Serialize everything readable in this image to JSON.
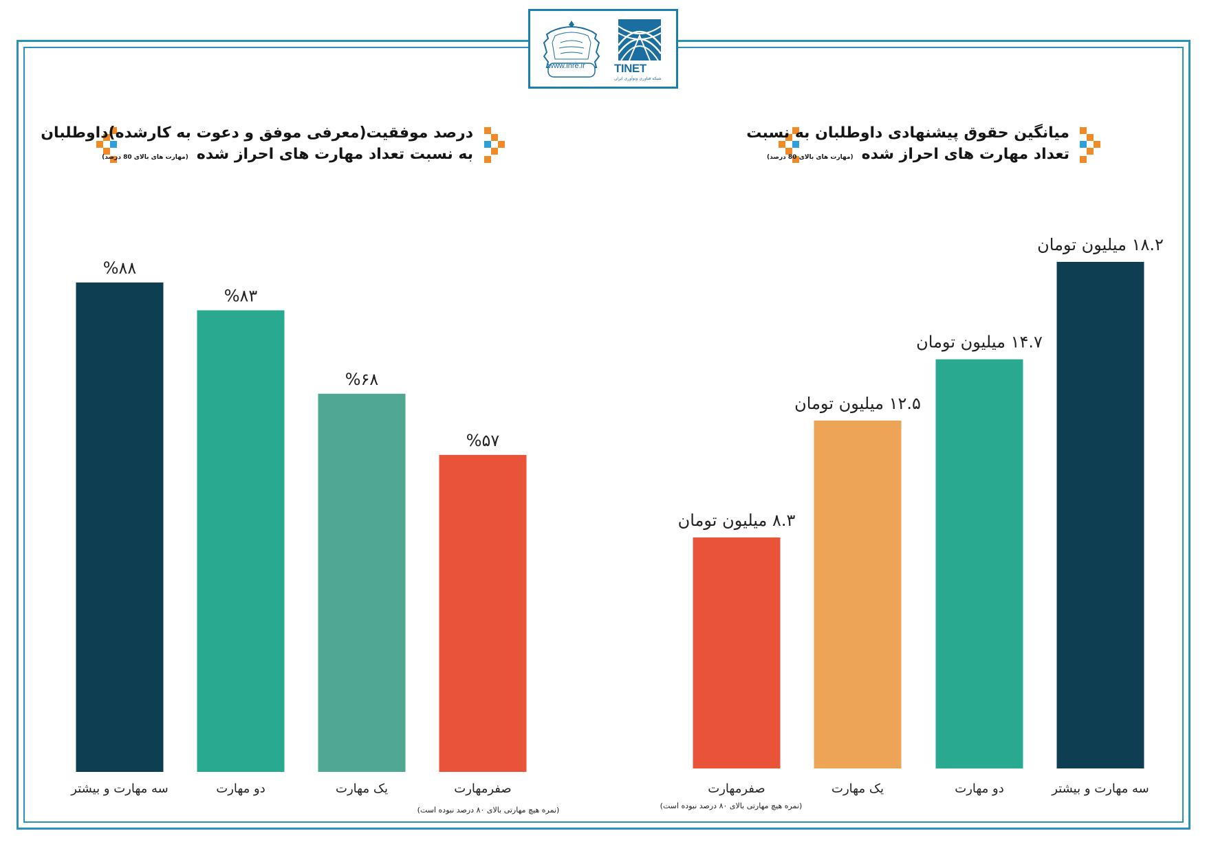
{
  "header": {
    "inre_url": "www.inre.ir",
    "tinet_name": "TINET",
    "tinet_subtitle": "شبکه فناوری ونوآوری ایران"
  },
  "colors": {
    "frame": "#2a92b8",
    "dark_teal": "#0e3e51",
    "teal": "#2aa991",
    "muted_teal": "#50a792",
    "orange_red": "#e8533a",
    "light_orange": "#eea457",
    "deco_orange": "#ef8a27",
    "deco_blue": "#2a9fd8"
  },
  "left_chart": {
    "title_line1": "درصد موفقیت(معرفی موفق و دعوت به کارشده)داوطلبان",
    "title_line2": "به نسبت تعداد مهارت های احراز شده",
    "title_note": "(مهارت های بالای 80 درصد)"
  },
  "right_chart": {
    "title_line1": "میانگین حقوق پیشنهادی داوطلبان به نسبت",
    "title_line2": "تعداد مهارت های احراز شده",
    "title_note": "(مهارت های بالای 80 درصد)"
  },
  "chart_data": [
    {
      "type": "bar",
      "title": "درصد موفقیت(معرفی موفق و دعوت به کارشده)داوطلبان به نسبت تعداد مهارت های احراز شده",
      "categories": [
        "سه مهارت و بیشتر",
        "دو مهارت",
        "یک مهارت",
        "صفرمهارت"
      ],
      "values": [
        88,
        83,
        68,
        57
      ],
      "value_labels": [
        "%۸۸",
        "%۸۳",
        "%۶۸",
        "%۵۷"
      ],
      "category_notes": [
        "",
        "",
        "",
        "(نمره هیچ مهارتی بالای ۸۰ درصد نبوده است)"
      ],
      "bar_colors": [
        "#0e3e51",
        "#2aa991",
        "#50a792",
        "#e8533a"
      ],
      "unit": "%",
      "ylim": [
        0,
        100
      ]
    },
    {
      "type": "bar",
      "title": "میانگین حقوق پیشنهادی داوطلبان به نسبت تعداد مهارت های احراز شده",
      "categories": [
        "صفرمهارت",
        "یک مهارت",
        "دو مهارت",
        "سه مهارت و بیشتر"
      ],
      "values": [
        8.3,
        12.5,
        14.7,
        18.2
      ],
      "value_labels": [
        "۸.۳  میلیون تومان",
        "۱۲.۵ میلیون تومان",
        "۱۴.۷ میلیون تومان",
        "۱۸.۲ میلیون تومان"
      ],
      "category_notes": [
        "(نمره هیچ مهارتی بالای ۸۰ درصد نبوده است)",
        "",
        "",
        ""
      ],
      "bar_colors": [
        "#e8533a",
        "#eea457",
        "#2aa991",
        "#0e3e51"
      ],
      "unit": "میلیون تومان",
      "ylim": [
        0,
        20
      ]
    }
  ]
}
